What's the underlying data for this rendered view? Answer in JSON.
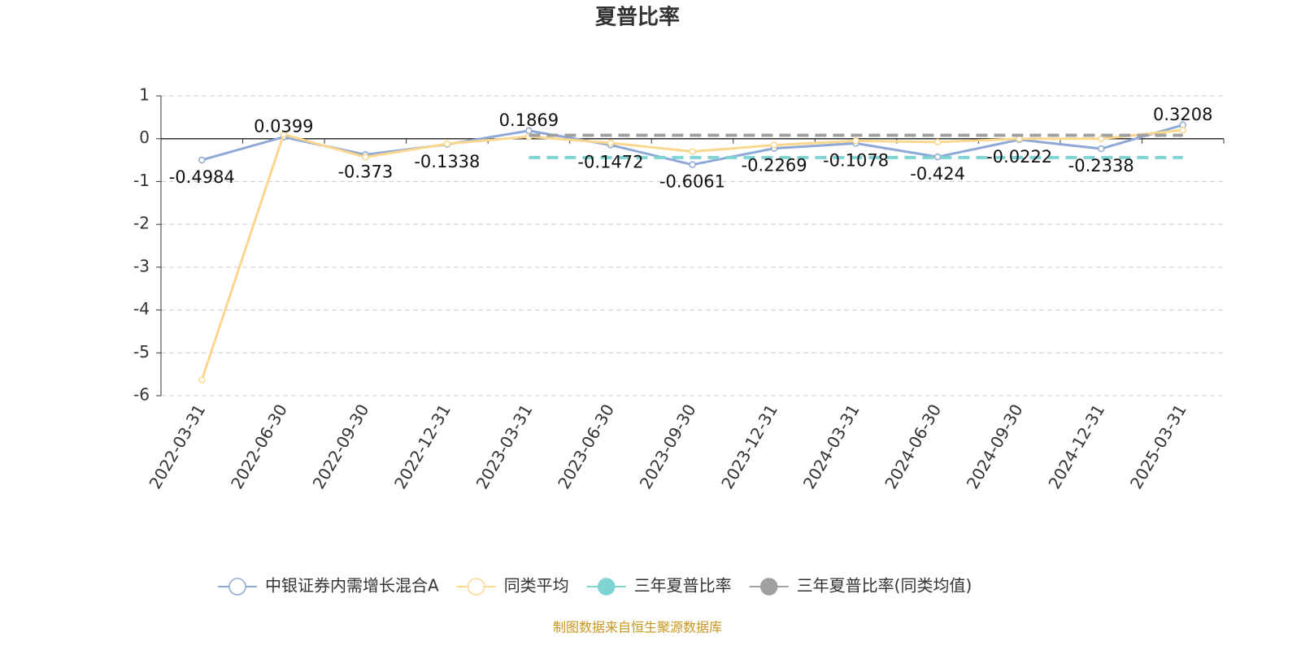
{
  "chart_data": {
    "type": "line",
    "title": "夏普比率",
    "categories": [
      "2022-03-31",
      "2022-06-30",
      "2022-09-30",
      "2022-12-31",
      "2023-03-31",
      "2023-06-30",
      "2023-09-30",
      "2023-12-31",
      "2024-03-31",
      "2024-06-30",
      "2024-09-30",
      "2024-12-31",
      "2025-03-31"
    ],
    "series": [
      {
        "name": "中银证券内需增长混合A",
        "color": "#8fa9d6",
        "style": "solid",
        "data_labels": true,
        "values": [
          -0.4984,
          0.0399,
          -0.373,
          -0.1338,
          0.1869,
          -0.1472,
          -0.6061,
          -0.2269,
          -0.1078,
          -0.424,
          -0.0222,
          -0.2338,
          0.3208
        ]
      },
      {
        "name": "同类平均",
        "color": "#fbd68d",
        "style": "solid",
        "data_labels": false,
        "values": [
          -5.63,
          0.1,
          -0.43,
          -0.12,
          0.05,
          -0.1,
          -0.3,
          -0.15,
          -0.05,
          -0.08,
          0.0,
          0.0,
          0.2
        ]
      },
      {
        "name": "三年夏普比率",
        "color": "#7fd3d3",
        "style": "dashed",
        "data_labels": false,
        "values": [
          null,
          null,
          null,
          null,
          -0.44,
          -0.44,
          -0.44,
          -0.44,
          -0.44,
          -0.44,
          -0.44,
          -0.44,
          -0.44
        ]
      },
      {
        "name": "三年夏普比率(同类均值)",
        "color": "#a0a0a0",
        "style": "dashed",
        "data_labels": false,
        "values": [
          null,
          null,
          null,
          null,
          0.08,
          0.08,
          0.08,
          0.08,
          0.08,
          0.08,
          0.08,
          0.08,
          0.08
        ]
      }
    ],
    "ylim": [
      -6,
      1
    ],
    "yticks": [
      -6,
      -5,
      -4,
      -3,
      -2,
      -1,
      0,
      1
    ],
    "grid": true,
    "source": "制图数据来自恒生聚源数据库"
  }
}
